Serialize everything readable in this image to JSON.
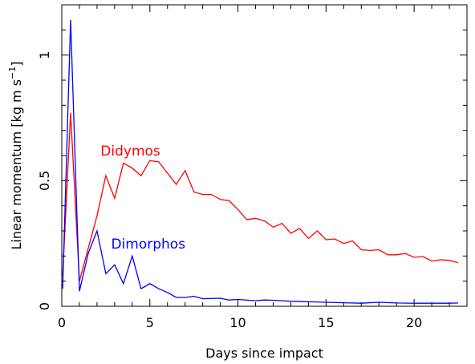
{
  "chart_data": {
    "type": "line",
    "title": "",
    "xlabel": "Days since impact",
    "ylabel": "Linear momentum [kg m s",
    "ylabel_sup": "−1",
    "ylabel_end": "]",
    "xlim": [
      0,
      23
    ],
    "ylim": [
      0,
      1.2
    ],
    "grid": false,
    "x_ticks": [
      0,
      5,
      10,
      15,
      20
    ],
    "x_tick_labels": [
      "0",
      "5",
      "10",
      "15",
      "20"
    ],
    "y_ticks": [
      0,
      0.5,
      1
    ],
    "y_tick_labels": [
      "0",
      "0.5",
      "1"
    ],
    "series": [
      {
        "name": "Didymos",
        "color": "#ff0000",
        "label_at": [
          2.2,
          0.6
        ],
        "points": [
          [
            0.05,
            0.12
          ],
          [
            0.5,
            0.77
          ],
          [
            1.0,
            0.1
          ],
          [
            1.5,
            0.23
          ],
          [
            2.0,
            0.36
          ],
          [
            2.5,
            0.52
          ],
          [
            3.0,
            0.43
          ],
          [
            3.5,
            0.57
          ],
          [
            4.0,
            0.55
          ],
          [
            4.5,
            0.52
          ],
          [
            5.0,
            0.58
          ],
          [
            5.5,
            0.575
          ],
          [
            6.0,
            0.53
          ],
          [
            6.5,
            0.485
          ],
          [
            7.0,
            0.54
          ],
          [
            7.5,
            0.455
          ],
          [
            8.0,
            0.445
          ],
          [
            8.5,
            0.445
          ],
          [
            9.0,
            0.425
          ],
          [
            9.5,
            0.42
          ],
          [
            10.0,
            0.385
          ],
          [
            10.5,
            0.345
          ],
          [
            11.0,
            0.35
          ],
          [
            11.5,
            0.34
          ],
          [
            12.0,
            0.315
          ],
          [
            12.5,
            0.33
          ],
          [
            13.0,
            0.29
          ],
          [
            13.5,
            0.31
          ],
          [
            14.0,
            0.27
          ],
          [
            14.5,
            0.3
          ],
          [
            15.0,
            0.265
          ],
          [
            15.5,
            0.268
          ],
          [
            16.0,
            0.25
          ],
          [
            16.5,
            0.26
          ],
          [
            17.0,
            0.225
          ],
          [
            17.5,
            0.222
          ],
          [
            18.0,
            0.225
          ],
          [
            18.5,
            0.205
          ],
          [
            19.0,
            0.205
          ],
          [
            19.5,
            0.21
          ],
          [
            20.0,
            0.195
          ],
          [
            20.5,
            0.198
          ],
          [
            21.0,
            0.18
          ],
          [
            21.5,
            0.185
          ],
          [
            22.0,
            0.183
          ],
          [
            22.5,
            0.173
          ]
        ]
      },
      {
        "name": "Dimorphos",
        "color": "#0000ff",
        "label_at": [
          2.8,
          0.23
        ],
        "points": [
          [
            0.05,
            0.07
          ],
          [
            0.5,
            1.14
          ],
          [
            1.0,
            0.06
          ],
          [
            1.5,
            0.21
          ],
          [
            2.0,
            0.3
          ],
          [
            2.5,
            0.13
          ],
          [
            3.0,
            0.165
          ],
          [
            3.5,
            0.09
          ],
          [
            4.0,
            0.2
          ],
          [
            4.5,
            0.07
          ],
          [
            5.0,
            0.09
          ],
          [
            5.5,
            0.07
          ],
          [
            6.0,
            0.055
          ],
          [
            6.5,
            0.035
          ],
          [
            7.0,
            0.035
          ],
          [
            7.5,
            0.04
          ],
          [
            8.0,
            0.03
          ],
          [
            9.0,
            0.032
          ],
          [
            9.5,
            0.025
          ],
          [
            10.0,
            0.027
          ],
          [
            11.0,
            0.022
          ],
          [
            11.5,
            0.025
          ],
          [
            12.0,
            0.024
          ],
          [
            12.5,
            0.022
          ],
          [
            13.0,
            0.02
          ],
          [
            14.0,
            0.018
          ],
          [
            15.0,
            0.016
          ],
          [
            16.0,
            0.014
          ],
          [
            17.0,
            0.012
          ],
          [
            18.0,
            0.016
          ],
          [
            19.0,
            0.013
          ],
          [
            20.0,
            0.012
          ],
          [
            21.0,
            0.012
          ],
          [
            22.0,
            0.012
          ],
          [
            22.5,
            0.013
          ]
        ]
      }
    ]
  }
}
